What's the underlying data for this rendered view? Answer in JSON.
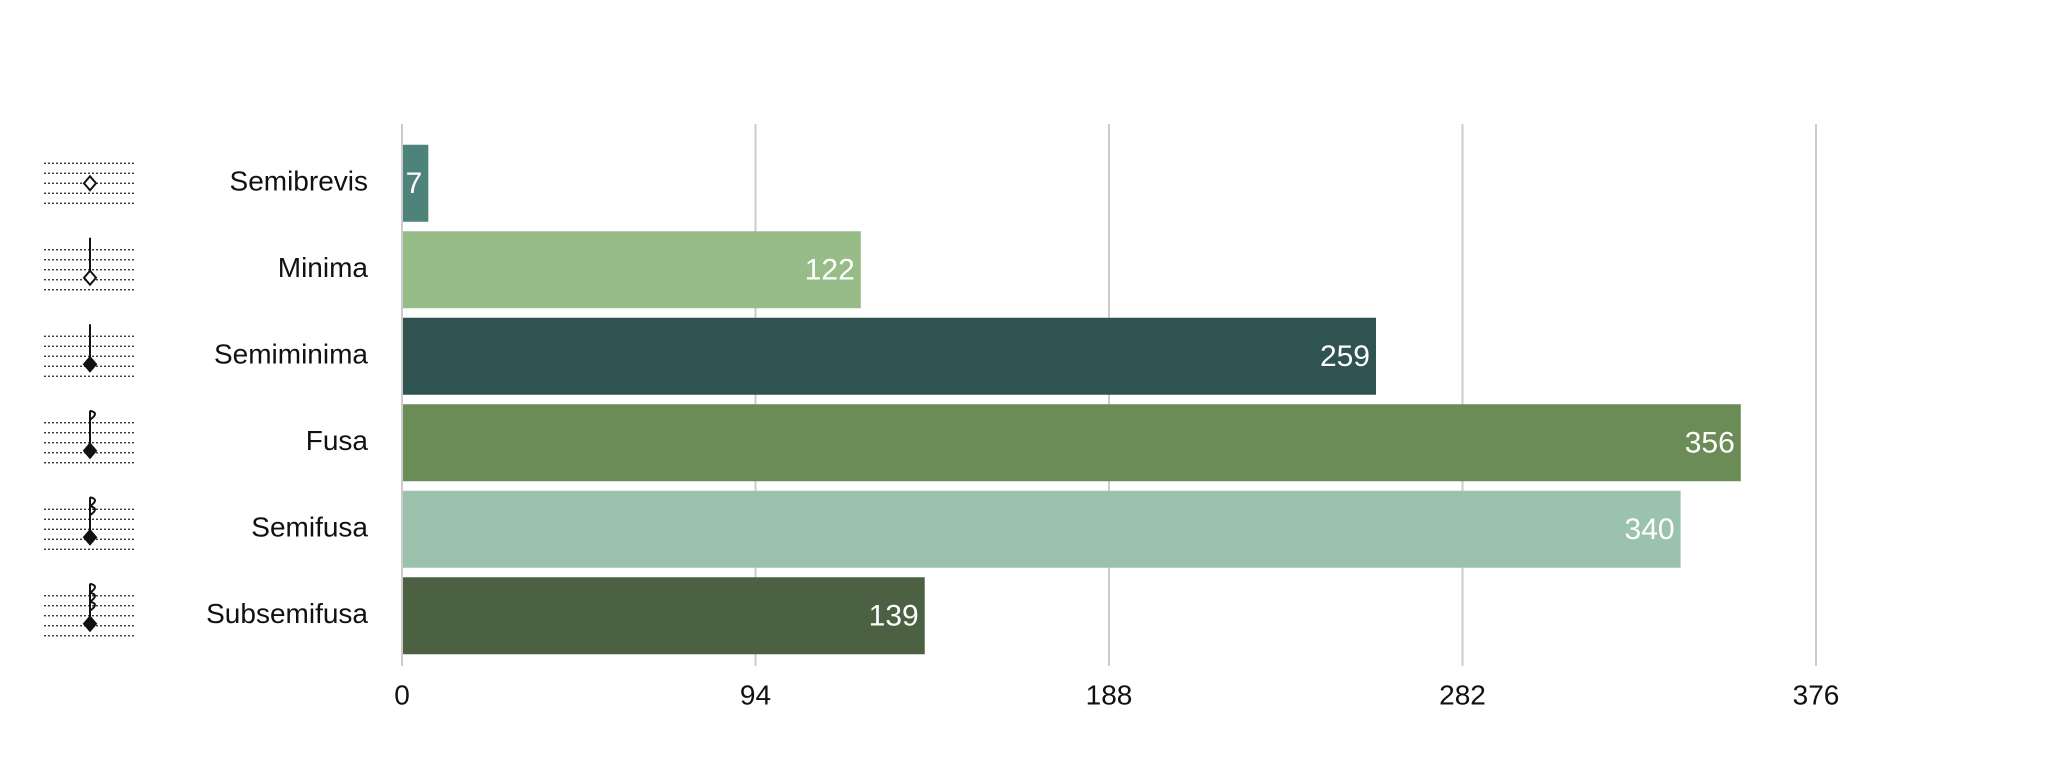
{
  "chart_data": {
    "type": "bar",
    "orientation": "horizontal",
    "categories": [
      "Semibrevis",
      "Minima",
      "Semiminima",
      "Fusa",
      "Semifusa",
      "Subsemifusa"
    ],
    "values": [
      7,
      122,
      259,
      356,
      340,
      139
    ],
    "colors": [
      "#4e8379",
      "#97bc88",
      "#2e5350",
      "#6b8c56",
      "#9bc2ad",
      "#4b6141"
    ],
    "xlim": [
      0,
      376
    ],
    "xticks": [
      0,
      94,
      188,
      282,
      376
    ],
    "grid": true
  }
}
